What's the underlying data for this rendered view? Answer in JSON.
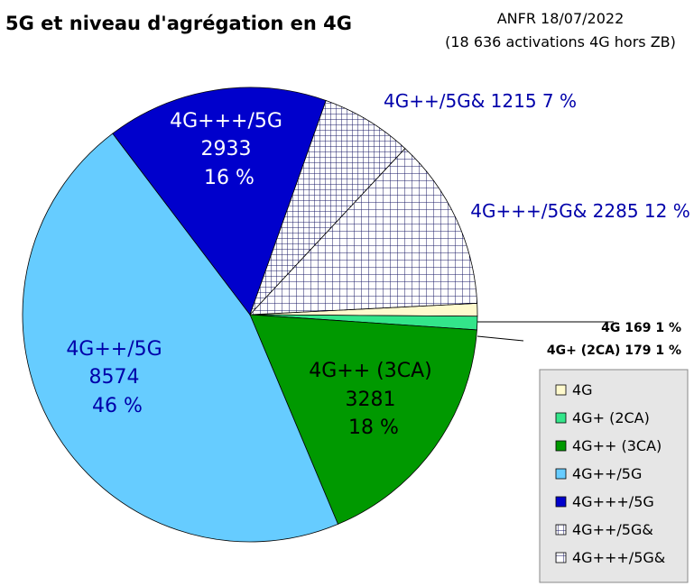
{
  "chart_data": {
    "type": "pie",
    "title": "5G et niveau d'agrégation en 4G",
    "source_line1": "ANFR 18/07/2022",
    "source_line2": "(18 636 activations 4G hors ZB)",
    "slices": [
      {
        "name": "4G",
        "value": 169,
        "percent": "1 %",
        "color": "#fffacd",
        "pattern": "none"
      },
      {
        "name": "4G+ (2CA)",
        "value": 179,
        "percent": "1 %",
        "color": "#33e58a",
        "pattern": "none"
      },
      {
        "name": "4G++ (3CA)",
        "value": 3281,
        "percent": "18 %",
        "color": "#009900",
        "pattern": "none"
      },
      {
        "name": "4G++/5G",
        "value": 8574,
        "percent": "46 %",
        "color": "#66ccff",
        "pattern": "none"
      },
      {
        "name": "4G+++/5G",
        "value": 2933,
        "percent": "16 %",
        "color": "#0000cc",
        "pattern": "none"
      },
      {
        "name": "4G++/5G&",
        "value": 1215,
        "percent": "7 %",
        "color": "#ffffff",
        "pattern": "grid-fine"
      },
      {
        "name": "4G+++/5G&",
        "value": 2285,
        "percent": "12 %",
        "color": "#ffffff",
        "pattern": "grid-coarse"
      }
    ],
    "legend_position": "bottom-right"
  }
}
